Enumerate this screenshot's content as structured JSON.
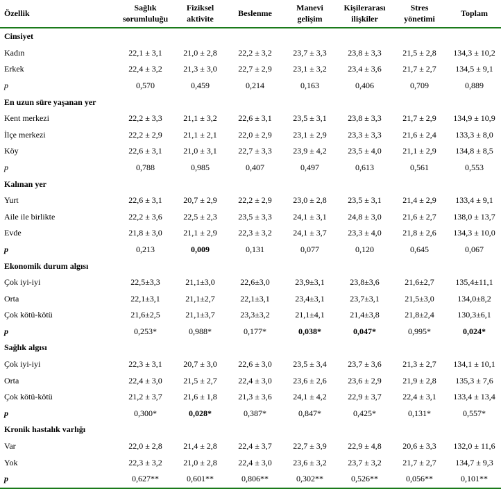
{
  "columns": [
    {
      "line1": "Özellik",
      "line2": ""
    },
    {
      "line1": "Sağlık",
      "line2": "sorumluluğu"
    },
    {
      "line1": "Fiziksel",
      "line2": "aktivite"
    },
    {
      "line1": "Beslenme",
      "line2": ""
    },
    {
      "line1": "Manevi",
      "line2": "gelişim"
    },
    {
      "line1": "Kişilerarası",
      "line2": "ilişkiler"
    },
    {
      "line1": "Stres",
      "line2": "yönetimi"
    },
    {
      "line1": "Toplam",
      "line2": ""
    }
  ],
  "sections": [
    {
      "title": "Cinsiyet",
      "rows": [
        {
          "label": "Kadın",
          "cells": [
            "22,1 ± 3,1",
            "21,0 ± 2,8",
            "22,2 ± 3,2",
            "23,7 ± 3,3",
            "23,8 ± 3,3",
            "21,5 ± 2,8",
            "134,3 ± 10,2"
          ]
        },
        {
          "label": "Erkek",
          "cells": [
            "22,4 ± 3,2",
            "21,3 ± 3,0",
            "22,7 ± 2,9",
            "23,1 ± 3,2",
            "23,4 ± 3,6",
            "21,7 ± 2,7",
            "134,5 ± 9,1"
          ]
        }
      ],
      "p": {
        "label": "p",
        "cells": [
          "0,570",
          "0,459",
          "0,214",
          "0,163",
          "0,406",
          "0,709",
          "0,889"
        ],
        "bold": [
          false,
          false,
          false,
          false,
          false,
          false,
          false
        ]
      }
    },
    {
      "title": "En uzun süre yaşanan yer",
      "rows": [
        {
          "label": "Kent merkezi",
          "cells": [
            "22,2 ± 3,3",
            "21,1 ± 3,2",
            "22,6 ± 3,1",
            "23,5 ± 3,1",
            "23,8 ± 3,3",
            "21,7 ± 2,9",
            "134,9 ± 10,9"
          ]
        },
        {
          "label": "İlçe merkezi",
          "cells": [
            "22,2 ± 2,9",
            "21,1 ± 2,1",
            "22,0 ± 2,9",
            "23,1 ± 2,9",
            "23,3 ± 3,3",
            "21,6 ± 2,4",
            "133,3 ± 8,0"
          ]
        },
        {
          "label": "Köy",
          "cells": [
            "22,6 ± 3,1",
            "21,0 ± 3,1",
            "22,7 ± 3,3",
            "23,9 ± 4,2",
            "23,5 ± 4,0",
            "21,1 ± 2,9",
            "134,8 ± 8,5"
          ]
        }
      ],
      "p": {
        "label": "p",
        "cells": [
          "0,788",
          "0,985",
          "0,407",
          "0,497",
          "0,613",
          "0,561",
          "0,553"
        ],
        "bold": [
          false,
          false,
          false,
          false,
          false,
          false,
          false
        ]
      }
    },
    {
      "title": "Kalınan yer",
      "rows": [
        {
          "label": "Yurt",
          "cells": [
            "22,6 ± 3,1",
            "20,7 ± 2,9",
            "22,2 ± 2,9",
            "23,0 ± 2,8",
            "23,5 ± 3,1",
            "21,4 ± 2,9",
            "133,4 ± 9,1"
          ]
        },
        {
          "label": "Aile ile birlikte",
          "cells": [
            "22,2 ± 3,6",
            "22,5 ± 2,3",
            "23,5 ± 3,3",
            "24,1 ± 3,1",
            "24,8 ± 3,0",
            "21,6 ± 2,7",
            "138,0 ± 13,7"
          ]
        },
        {
          "label": "Evde",
          "cells": [
            "21,8 ± 3,0",
            "21,1 ± 2,9",
            "22,3 ± 3,2",
            "24,1 ± 3,7",
            "23,3 ± 4,0",
            "21,8 ± 2,6",
            "134,3 ± 10,0"
          ]
        }
      ],
      "p": {
        "label": "p",
        "cells": [
          "0,213",
          "0,009",
          "0,131",
          "0,077",
          "0,120",
          "0,645",
          "0,067"
        ],
        "bold": [
          false,
          true,
          false,
          false,
          false,
          false,
          false
        ],
        "labelBoldItalic": true
      }
    },
    {
      "title": "Ekonomik durum algısı",
      "rows": [
        {
          "label": "Çok iyi-iyi",
          "cells": [
            "22,5±3,3",
            "21,1±3,0",
            "22,6±3,0",
            "23,9±3,1",
            "23,8±3,6",
            "21,6±2,7",
            "135,4±11,1"
          ]
        },
        {
          "label": "Orta",
          "cells": [
            "22,1±3,1",
            "21,1±2,7",
            "22,1±3,1",
            "23,4±3,1",
            "23,7±3,1",
            "21,5±3,0",
            "134,0±8,2"
          ]
        },
        {
          "label": "Çok kötü-kötü",
          "cells": [
            "21,6±2,5",
            "21,1±3,7",
            "23,3±3,2",
            "21,1±4,1",
            "21,4±3,8",
            "21,8±2,4",
            "130,3±6,1"
          ]
        }
      ],
      "p": {
        "label": "p",
        "cells": [
          "0,253*",
          "0,988*",
          "0,177*",
          "0,038*",
          "0,047*",
          "0,995*",
          "0,024*"
        ],
        "bold": [
          false,
          false,
          false,
          true,
          true,
          false,
          true
        ],
        "labelBoldItalic": true
      }
    },
    {
      "title": "Sağlık algısı",
      "rows": [
        {
          "label": "Çok iyi-iyi",
          "cells": [
            "22,3 ± 3,1",
            "20,7 ± 3,0",
            "22,6 ± 3,0",
            "23,5 ± 3,4",
            "23,7 ± 3,6",
            "21,3 ± 2,7",
            "134,1 ± 10,1"
          ]
        },
        {
          "label": "Orta",
          "cells": [
            "22,4 ± 3,0",
            "21,5 ± 2,7",
            "22,4 ± 3,0",
            "23,6 ± 2,6",
            "23,6 ± 2,9",
            "21,9 ± 2,8",
            "135,3 ± 7,6"
          ]
        },
        {
          "label": "Çok kötü-kötü",
          "cells": [
            "21,2 ± 3,7",
            "21,6 ± 1,8",
            "21,3 ± 3,6",
            "24,1 ± 4,2",
            "22,9 ± 3,7",
            "22,4 ± 3,1",
            "133,4 ± 13,4"
          ]
        }
      ],
      "p": {
        "label": "p",
        "cells": [
          "0,300*",
          "0,028*",
          "0,387*",
          "0,847*",
          "0,425*",
          "0,131*",
          "0,557*"
        ],
        "bold": [
          false,
          true,
          false,
          false,
          false,
          false,
          false
        ],
        "labelBoldItalic": true
      }
    },
    {
      "title": "Kronik hastalık varlığı",
      "rows": [
        {
          "label": "Var",
          "cells": [
            "22,0 ± 2,8",
            "21,4 ± 2,8",
            "22,4 ± 3,7",
            "22,7 ± 3,9",
            "22,9 ± 4,8",
            "20,6 ± 3,3",
            "132,0 ± 11,6"
          ]
        },
        {
          "label": "Yok",
          "cells": [
            "22,3 ± 3,2",
            "21,0 ± 2,8",
            "22,4 ± 3,0",
            "23,6 ± 3,2",
            "23,7 ± 3,2",
            "21,7 ± 2,7",
            "134,7 ± 9,3"
          ]
        }
      ],
      "p": {
        "label": "p",
        "cells": [
          "0,627**",
          "0,601**",
          "0,806**",
          "0,302**",
          "0,526**",
          "0,056**",
          "0,101**"
        ],
        "bold": [
          false,
          false,
          false,
          false,
          false,
          false,
          false
        ],
        "labelBoldItalic": true
      }
    }
  ]
}
